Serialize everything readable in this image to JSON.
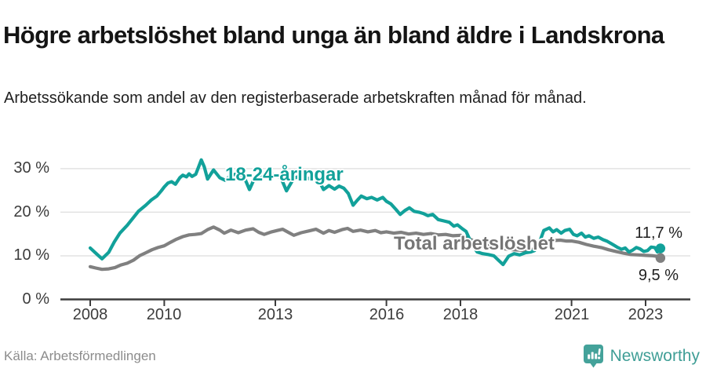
{
  "header": {
    "title": "Högre arbetslöshet bland unga än bland äldre i Landskrona",
    "subtitle": "Arbetssökande som andel av den registerbaserade arbetskraften månad för månad."
  },
  "chart_data": {
    "type": "line",
    "title": "Högre arbetslöshet bland unga än bland äldre i Landskrona",
    "xlabel": "",
    "ylabel": "",
    "unit": "%",
    "grid": true,
    "legend_position": "inline-labels",
    "x_axis": {
      "range": [
        2007.8,
        2023.75
      ],
      "ticks": [
        2008,
        2010,
        2013,
        2016,
        2018,
        2021,
        2023
      ],
      "tick_labels": [
        "2008",
        "2010",
        "2013",
        "2016",
        "2018",
        "2021",
        "2023"
      ]
    },
    "y_axis": {
      "range": [
        0,
        33
      ],
      "ticks": [
        0,
        10,
        20,
        30
      ],
      "tick_labels": [
        "0 %",
        "10 %",
        "20 %",
        "30 %"
      ]
    },
    "series": [
      {
        "name": "18-24-åringar",
        "color": "#12a19a",
        "end_label": "11,7 %",
        "end_value": 11.7,
        "points": [
          [
            2008.0,
            11.8
          ],
          [
            2008.15,
            10.6
          ],
          [
            2008.32,
            9.3
          ],
          [
            2008.5,
            10.8
          ],
          [
            2008.65,
            13.2
          ],
          [
            2008.8,
            15.2
          ],
          [
            2009.0,
            17.0
          ],
          [
            2009.15,
            18.6
          ],
          [
            2009.3,
            20.2
          ],
          [
            2009.5,
            21.6
          ],
          [
            2009.65,
            22.8
          ],
          [
            2009.8,
            23.7
          ],
          [
            2009.92,
            24.9
          ],
          [
            2010.0,
            25.8
          ],
          [
            2010.1,
            26.7
          ],
          [
            2010.2,
            27.0
          ],
          [
            2010.3,
            26.4
          ],
          [
            2010.42,
            27.9
          ],
          [
            2010.5,
            28.5
          ],
          [
            2010.6,
            28.1
          ],
          [
            2010.67,
            28.8
          ],
          [
            2010.75,
            28.2
          ],
          [
            2010.85,
            28.7
          ],
          [
            2010.92,
            30.2
          ],
          [
            2011.0,
            32.0
          ],
          [
            2011.08,
            30.4
          ],
          [
            2011.17,
            27.6
          ],
          [
            2011.33,
            29.7
          ],
          [
            2011.5,
            27.9
          ],
          [
            2011.65,
            27.3
          ],
          [
            2011.8,
            28.5
          ],
          [
            2012.0,
            28.8
          ],
          [
            2012.15,
            28.2
          ],
          [
            2012.3,
            25.2
          ],
          [
            2012.45,
            28.0
          ],
          [
            2012.65,
            28.6
          ],
          [
            2012.8,
            28.9
          ],
          [
            2013.0,
            28.5
          ],
          [
            2013.15,
            27.9
          ],
          [
            2013.3,
            24.9
          ],
          [
            2013.5,
            27.8
          ],
          [
            2013.7,
            28.4
          ],
          [
            2013.9,
            27.7
          ],
          [
            2014.1,
            28.5
          ],
          [
            2014.3,
            25.2
          ],
          [
            2014.45,
            26.1
          ],
          [
            2014.6,
            25.3
          ],
          [
            2014.72,
            26.0
          ],
          [
            2014.85,
            25.5
          ],
          [
            2014.97,
            24.3
          ],
          [
            2015.1,
            21.6
          ],
          [
            2015.22,
            22.8
          ],
          [
            2015.32,
            23.7
          ],
          [
            2015.47,
            23.1
          ],
          [
            2015.6,
            23.4
          ],
          [
            2015.75,
            22.8
          ],
          [
            2015.9,
            23.4
          ],
          [
            2016.0,
            22.5
          ],
          [
            2016.12,
            21.9
          ],
          [
            2016.25,
            20.7
          ],
          [
            2016.37,
            19.5
          ],
          [
            2016.5,
            20.4
          ],
          [
            2016.62,
            21.0
          ],
          [
            2016.75,
            20.2
          ],
          [
            2016.88,
            20.0
          ],
          [
            2017.0,
            19.7
          ],
          [
            2017.12,
            19.2
          ],
          [
            2017.25,
            19.5
          ],
          [
            2017.4,
            18.3
          ],
          [
            2017.55,
            18.0
          ],
          [
            2017.7,
            17.7
          ],
          [
            2017.82,
            16.8
          ],
          [
            2017.92,
            17.1
          ],
          [
            2018.05,
            16.2
          ],
          [
            2018.15,
            15.6
          ],
          [
            2018.3,
            12.8
          ],
          [
            2018.45,
            10.9
          ],
          [
            2018.6,
            10.5
          ],
          [
            2018.75,
            10.3
          ],
          [
            2018.9,
            10.0
          ],
          [
            2019.0,
            9.2
          ],
          [
            2019.15,
            8.0
          ],
          [
            2019.3,
            9.9
          ],
          [
            2019.45,
            10.5
          ],
          [
            2019.6,
            10.2
          ],
          [
            2019.75,
            10.7
          ],
          [
            2019.9,
            10.9
          ],
          [
            2020.0,
            11.2
          ],
          [
            2020.1,
            12.3
          ],
          [
            2020.25,
            15.8
          ],
          [
            2020.4,
            16.4
          ],
          [
            2020.5,
            15.5
          ],
          [
            2020.6,
            16.0
          ],
          [
            2020.72,
            15.2
          ],
          [
            2020.82,
            15.8
          ],
          [
            2020.95,
            16.1
          ],
          [
            2021.05,
            14.9
          ],
          [
            2021.15,
            14.6
          ],
          [
            2021.27,
            15.2
          ],
          [
            2021.37,
            14.3
          ],
          [
            2021.47,
            14.6
          ],
          [
            2021.6,
            14.0
          ],
          [
            2021.72,
            14.3
          ],
          [
            2021.85,
            13.7
          ],
          [
            2021.95,
            13.4
          ],
          [
            2022.05,
            12.9
          ],
          [
            2022.15,
            12.4
          ],
          [
            2022.25,
            11.9
          ],
          [
            2022.35,
            11.5
          ],
          [
            2022.45,
            11.8
          ],
          [
            2022.55,
            10.9
          ],
          [
            2022.65,
            11.3
          ],
          [
            2022.75,
            11.9
          ],
          [
            2022.85,
            11.6
          ],
          [
            2022.95,
            11.0
          ],
          [
            2023.05,
            11.2
          ],
          [
            2023.15,
            12.0
          ],
          [
            2023.25,
            11.9
          ],
          [
            2023.32,
            10.9
          ],
          [
            2023.4,
            11.7
          ]
        ]
      },
      {
        "name": "Total arbetslöshet",
        "color": "#808080",
        "end_label": "9,5 %",
        "end_value": 9.5,
        "points": [
          [
            2008.0,
            7.5
          ],
          [
            2008.15,
            7.2
          ],
          [
            2008.32,
            6.9
          ],
          [
            2008.5,
            7.0
          ],
          [
            2008.67,
            7.3
          ],
          [
            2008.83,
            7.9
          ],
          [
            2009.0,
            8.3
          ],
          [
            2009.17,
            9.0
          ],
          [
            2009.33,
            10.0
          ],
          [
            2009.5,
            10.7
          ],
          [
            2009.67,
            11.4
          ],
          [
            2009.83,
            11.9
          ],
          [
            2010.0,
            12.3
          ],
          [
            2010.17,
            13.1
          ],
          [
            2010.33,
            13.8
          ],
          [
            2010.5,
            14.4
          ],
          [
            2010.67,
            14.8
          ],
          [
            2010.83,
            14.9
          ],
          [
            2011.0,
            15.1
          ],
          [
            2011.17,
            16.0
          ],
          [
            2011.33,
            16.6
          ],
          [
            2011.5,
            15.9
          ],
          [
            2011.62,
            15.2
          ],
          [
            2011.8,
            15.9
          ],
          [
            2012.0,
            15.3
          ],
          [
            2012.2,
            15.9
          ],
          [
            2012.4,
            16.2
          ],
          [
            2012.55,
            15.4
          ],
          [
            2012.7,
            14.9
          ],
          [
            2012.9,
            15.5
          ],
          [
            2013.05,
            15.8
          ],
          [
            2013.2,
            16.1
          ],
          [
            2013.35,
            15.4
          ],
          [
            2013.5,
            14.7
          ],
          [
            2013.7,
            15.3
          ],
          [
            2013.9,
            15.7
          ],
          [
            2014.1,
            16.1
          ],
          [
            2014.3,
            15.2
          ],
          [
            2014.45,
            15.8
          ],
          [
            2014.6,
            15.4
          ],
          [
            2014.8,
            16.0
          ],
          [
            2014.95,
            16.3
          ],
          [
            2015.1,
            15.6
          ],
          [
            2015.3,
            15.9
          ],
          [
            2015.5,
            15.5
          ],
          [
            2015.7,
            15.8
          ],
          [
            2015.85,
            15.3
          ],
          [
            2016.0,
            15.5
          ],
          [
            2016.2,
            15.2
          ],
          [
            2016.4,
            15.4
          ],
          [
            2016.6,
            15.0
          ],
          [
            2016.8,
            15.2
          ],
          [
            2017.0,
            14.9
          ],
          [
            2017.2,
            15.1
          ],
          [
            2017.4,
            14.8
          ],
          [
            2017.6,
            14.9
          ],
          [
            2017.8,
            14.6
          ],
          [
            2018.0,
            14.7
          ],
          [
            2018.2,
            14.0
          ],
          [
            2018.4,
            13.3
          ],
          [
            2018.6,
            12.7
          ],
          [
            2018.8,
            12.2
          ],
          [
            2019.0,
            11.9
          ],
          [
            2019.2,
            11.6
          ],
          [
            2019.4,
            11.4
          ],
          [
            2019.6,
            11.3
          ],
          [
            2019.8,
            11.2
          ],
          [
            2020.0,
            11.6
          ],
          [
            2020.2,
            12.5
          ],
          [
            2020.35,
            13.2
          ],
          [
            2020.5,
            13.5
          ],
          [
            2020.7,
            13.6
          ],
          [
            2020.85,
            13.4
          ],
          [
            2021.0,
            13.4
          ],
          [
            2021.2,
            13.1
          ],
          [
            2021.4,
            12.6
          ],
          [
            2021.6,
            12.2
          ],
          [
            2021.8,
            11.9
          ],
          [
            2022.0,
            11.4
          ],
          [
            2022.2,
            11.0
          ],
          [
            2022.4,
            10.6
          ],
          [
            2022.6,
            10.3
          ],
          [
            2022.8,
            10.2
          ],
          [
            2023.0,
            10.1
          ],
          [
            2023.2,
            10.0
          ],
          [
            2023.3,
            9.9
          ],
          [
            2023.4,
            9.5
          ]
        ]
      }
    ],
    "colors": {
      "youth_line": "#12a19a",
      "total_line": "#808080",
      "gridline": "#e2e2e2",
      "axis": "#3c3c3c"
    }
  },
  "footer": {
    "source": "Källa: Arbetsförmedlingen",
    "brand": "Newsworthy",
    "brand_color": "#3f9e96"
  }
}
